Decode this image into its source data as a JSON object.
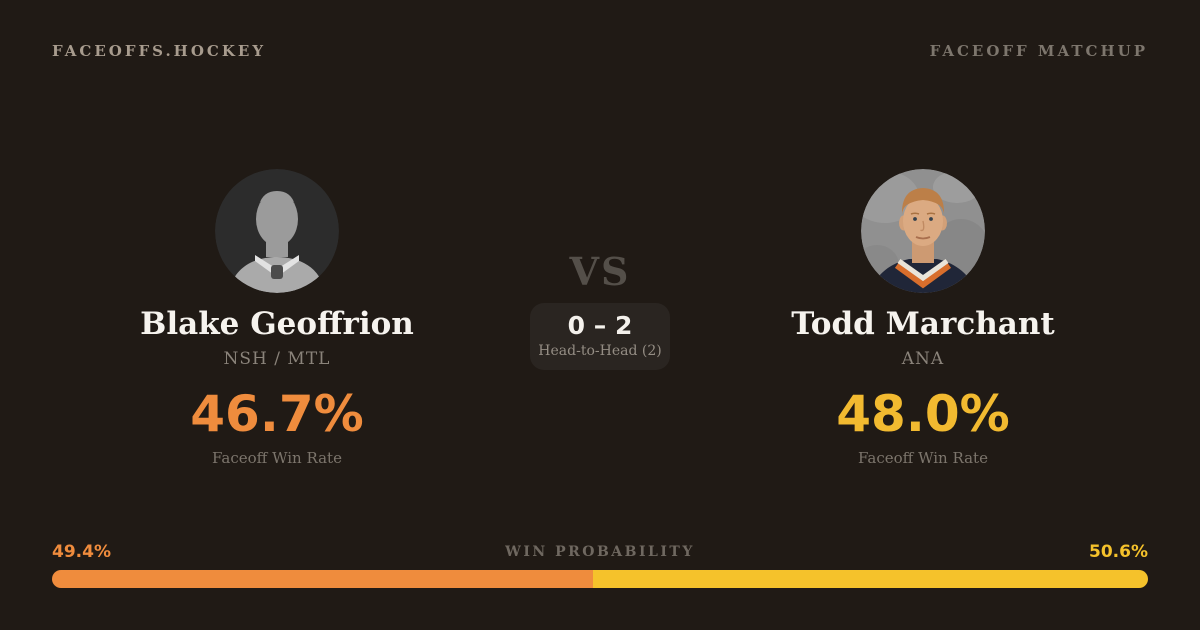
{
  "header": {
    "brand": "FACEOFFS.HOCKEY",
    "page_label": "FACEOFF MATCHUP"
  },
  "matchup": {
    "vs_label": "VS",
    "head_to_head_score": "0 – 2",
    "head_to_head_label": "Head-to-Head (2)"
  },
  "players": {
    "left": {
      "name": "Blake Geoffrion",
      "team": "NSH / MTL",
      "win_rate": "46.7%",
      "win_rate_label": "Faceoff Win Rate",
      "avatar": "silhouette-placeholder",
      "accent_color": "#ef8c3d"
    },
    "right": {
      "name": "Todd Marchant",
      "team": "ANA",
      "win_rate": "48.0%",
      "win_rate_label": "Faceoff Win Rate",
      "avatar": "player-headshot-photo",
      "accent_color": "#f2ba30"
    }
  },
  "win_probability": {
    "label": "WIN PROBABILITY",
    "left_pct_text": "49.4%",
    "right_pct_text": "50.6%",
    "left_value": 49.4,
    "right_value": 50.6,
    "left_color": "#ef8c3d",
    "right_color": "#f5c22b"
  },
  "theme": {
    "background": "#201a15",
    "panel": "#2a2521",
    "text_primary": "#f6f3ee",
    "text_muted": "#8a837a"
  }
}
